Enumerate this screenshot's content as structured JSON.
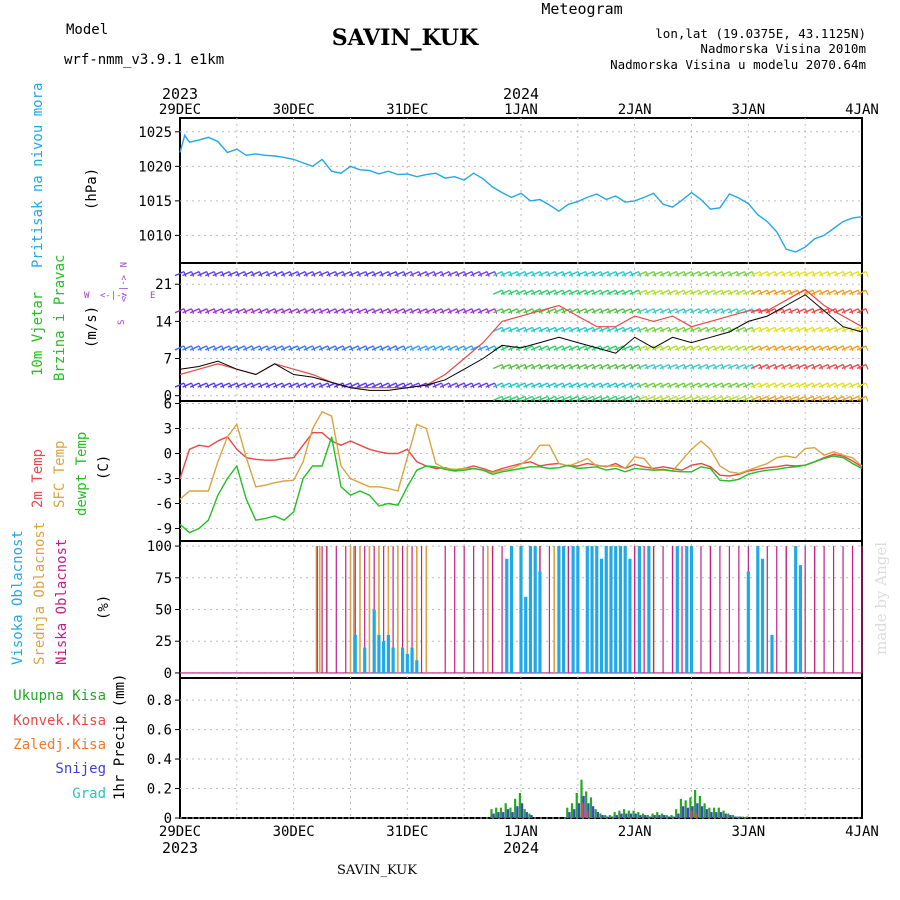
{
  "header": {
    "model_label": "Model",
    "model_value": "wrf-nmm_v3.9.1  e1km",
    "station_title": "SAVIN_KUK",
    "meteogram_label": "Meteogram",
    "lonlat": "lon,lat (19.0375E, 43.1125N)",
    "elevation": "Nadmorska Visina 2010m",
    "model_elevation": "Nadmorska Visina u modelu 2070.64m",
    "footer_station": "SAVIN_KUK",
    "watermark": "made by Angel"
  },
  "time_axis": {
    "top_years": [
      "2023",
      "2024"
    ],
    "bottom_years": [
      "2023",
      "2024"
    ],
    "dates": [
      "29DEC",
      "30DEC",
      "31DEC",
      "1JAN",
      "2JAN",
      "3JAN",
      "4JAN"
    ],
    "year_date_index": [
      0,
      3
    ],
    "hours_total": 144
  },
  "colors": {
    "pressure": "#22a8e6",
    "temp2m": "#e84848",
    "sfc": "#d9a441",
    "dewpt": "#22c022",
    "low_cloud": "#c0208a",
    "mid_cloud": "#d9a441",
    "high_cloud": "#22a8e6",
    "precip_total": "#22a822",
    "precip_conv": "#e84848",
    "precip_freez": "#f07a2a",
    "precip_snow": "#4040d8",
    "precip_grad": "#30c0c0"
  },
  "panels": {
    "pressure": {
      "labels": [
        "Pritisak na nivou mora",
        "(hPa)"
      ],
      "yticks": [
        "1025",
        "1020",
        "1015",
        "1010"
      ]
    },
    "wind": {
      "labels": [
        "10m Vjetar",
        "Brzina i Pravac",
        "(m/s)"
      ],
      "yticks": [
        "21",
        "14",
        "7",
        "0"
      ],
      "compass": {
        "n": "N",
        "s": "S",
        "e": "E",
        "w": "W",
        "arrow": "<-|->"
      }
    },
    "temperature": {
      "labels": [
        "2m Temp",
        "SFC Temp",
        "dewpt Temp",
        "(C)"
      ],
      "yticks": [
        "6",
        "3",
        "0",
        "-3",
        "-6",
        "-9"
      ]
    },
    "cloud": {
      "labels": [
        "Visoka Oblacnost",
        "Srednja Oblacnost",
        "Niska Oblacnost",
        "(%)"
      ],
      "yticks": [
        "100",
        "75",
        "50",
        "25",
        "0"
      ]
    },
    "precip": {
      "legend": [
        "Ukupna Kisa",
        "Konvek.Kisa",
        "Zaledj.Kisa",
        "Snijeg",
        "Grad"
      ],
      "ylabel": "1hr Precip (mm)",
      "yticks": [
        "0.8",
        "0.6",
        "0.4",
        "0.2",
        "0"
      ]
    }
  },
  "chart_data": {
    "type": "line",
    "x_unit": "hours from 29DEC 2023 00UTC",
    "pressure": {
      "name": "Pritisak na nivou mora",
      "ylim": [
        1006,
        1027
      ],
      "x": [
        0,
        1,
        2,
        4,
        6,
        8,
        10,
        12,
        14,
        16,
        18,
        20,
        22,
        24,
        26,
        28,
        30,
        32,
        34,
        36,
        38,
        40,
        42,
        44,
        46,
        48,
        50,
        52,
        54,
        56,
        58,
        60,
        62,
        64,
        66,
        68,
        70,
        72,
        74,
        76,
        78,
        80,
        82,
        84,
        86,
        88,
        90,
        92,
        94,
        96,
        98,
        100,
        102,
        104,
        106,
        108,
        110,
        112,
        114,
        116,
        118,
        120,
        122,
        124,
        126,
        128,
        130,
        132,
        134,
        136,
        138,
        140,
        142,
        144
      ],
      "values": [
        1022,
        1024.5,
        1023.5,
        1023.8,
        1024.2,
        1023.6,
        1022,
        1022.5,
        1021.6,
        1021.8,
        1021.6,
        1021.5,
        1021.3,
        1021,
        1020.5,
        1020,
        1021,
        1019.3,
        1019,
        1020,
        1019.5,
        1019.4,
        1018.9,
        1019.3,
        1018.8,
        1018.9,
        1018.5,
        1018.8,
        1019,
        1018.3,
        1018.5,
        1018,
        1019,
        1018.2,
        1017,
        1016.2,
        1015.5,
        1016.1,
        1015,
        1015.2,
        1014.4,
        1013.5,
        1014.5,
        1014.9,
        1015.5,
        1016,
        1015.2,
        1015.7,
        1014.8,
        1015,
        1015.5,
        1016.1,
        1014.5,
        1014.1,
        1015.1,
        1016.2,
        1015.2,
        1013.8,
        1014,
        1016,
        1015.4,
        1014.6,
        1013,
        1012,
        1010.5,
        1008,
        1007.6,
        1008.3,
        1009.5,
        1010,
        1011,
        1012,
        1012.5,
        1012.7
      ]
    },
    "wind": {
      "name": "10m Vjetar",
      "ylim": [
        -1,
        25
      ],
      "x": [
        0,
        4,
        8,
        12,
        16,
        20,
        24,
        28,
        32,
        36,
        40,
        44,
        48,
        52,
        56,
        60,
        64,
        68,
        72,
        76,
        80,
        84,
        88,
        92,
        96,
        100,
        104,
        108,
        112,
        116,
        120,
        124,
        128,
        132,
        136,
        140,
        144
      ],
      "speed_mean": [
        5,
        5.5,
        6.5,
        5,
        4,
        6,
        4,
        3.5,
        2.5,
        1.5,
        1,
        1,
        1.5,
        2,
        3,
        5,
        7,
        9.5,
        9,
        10,
        11,
        10,
        9,
        8,
        11,
        9,
        11,
        10,
        11,
        12,
        14,
        15,
        17,
        19,
        16,
        13,
        12
      ],
      "speed_gust": [
        4,
        5,
        6,
        5,
        4,
        6,
        5,
        4,
        2.5,
        1.5,
        1.5,
        1.5,
        1.5,
        2,
        4,
        7,
        10,
        14,
        15,
        16,
        17,
        15,
        13,
        13,
        15,
        14,
        15,
        13,
        14,
        15,
        16,
        16,
        18,
        20,
        17,
        15,
        13
      ]
    },
    "temperature": {
      "ylim": [
        -10.5,
        6.3
      ],
      "x": [
        0,
        2,
        4,
        6,
        8,
        10,
        12,
        14,
        16,
        18,
        20,
        22,
        24,
        26,
        28,
        30,
        32,
        34,
        36,
        38,
        40,
        42,
        44,
        46,
        48,
        50,
        52,
        54,
        56,
        58,
        60,
        62,
        64,
        66,
        68,
        70,
        72,
        74,
        76,
        78,
        80,
        82,
        84,
        86,
        88,
        90,
        92,
        94,
        96,
        98,
        100,
        102,
        104,
        106,
        108,
        110,
        112,
        114,
        116,
        118,
        120,
        122,
        124,
        126,
        128,
        130,
        132,
        134,
        136,
        138,
        140,
        142,
        144
      ],
      "series": [
        {
          "name": "2m Temp",
          "values": [
            -3,
            0.5,
            1,
            0.8,
            1.5,
            2,
            0.5,
            -0.5,
            -0.7,
            -0.8,
            -0.8,
            -0.6,
            -0.5,
            1,
            2.5,
            2.5,
            1.5,
            1,
            1.5,
            1,
            0.5,
            0.2,
            0,
            0,
            0.5,
            -1,
            -1.5,
            -1.8,
            -1.7,
            -2,
            -1.8,
            -1.5,
            -1.8,
            -2.2,
            -1.8,
            -1.5,
            -1.2,
            -1,
            -1.5,
            -1.3,
            -1.2,
            -1.5,
            -1.5,
            -1.2,
            -1.4,
            -1.6,
            -1.2,
            -1.8,
            -1.3,
            -1.6,
            -1.8,
            -1.6,
            -1.8,
            -2,
            -1.4,
            -1.2,
            -1.6,
            -2.6,
            -2.7,
            -2.5,
            -2.1,
            -1.9,
            -1.7,
            -1.6,
            -1.4,
            -1.5,
            -1.4,
            -1,
            -0.5,
            -0.1,
            -0.3,
            -0.9,
            -1.6
          ]
        },
        {
          "name": "SFC Temp",
          "values": [
            -5.5,
            -4.5,
            -4.5,
            -4.5,
            -1,
            2,
            3.5,
            -0.5,
            -4,
            -3.8,
            -3.5,
            -3.3,
            -3.2,
            -1,
            3,
            5,
            4.5,
            -1.5,
            -3,
            -3.5,
            -4,
            -4,
            -4.2,
            -4.5,
            -0.5,
            3.5,
            3,
            -1.2,
            -1.8,
            -1.9,
            -1.8,
            -1.8,
            -2,
            -2.3,
            -2,
            -1.8,
            -1.3,
            -0.5,
            1,
            1,
            -1.2,
            -1.5,
            -1.1,
            -0.6,
            -1.5,
            -1.5,
            -1.5,
            -1.8,
            -0.4,
            -0.6,
            -2,
            -2,
            -2.1,
            -0.8,
            0.5,
            1.5,
            0.5,
            -1.5,
            -2.2,
            -2.4,
            -2,
            -1.6,
            -1.2,
            -0.5,
            -0.3,
            -0.5,
            0.6,
            0.7,
            -0.2,
            0.2,
            -0.2,
            -0.5,
            -1.5
          ]
        },
        {
          "name": "dewpt Temp",
          "values": [
            -8.5,
            -9.5,
            -9,
            -8,
            -5,
            -3,
            -1.5,
            -5.5,
            -8,
            -7.8,
            -7.5,
            -8,
            -7,
            -3,
            -1.5,
            -1.5,
            2,
            -4,
            -5,
            -4.5,
            -5,
            -6.3,
            -6,
            -6.2,
            -4,
            -2,
            -1.5,
            -1.6,
            -1.9,
            -2.1,
            -2,
            -1.8,
            -2,
            -2.5,
            -2.2,
            -2,
            -1.8,
            -1.6,
            -1.6,
            -1.8,
            -1.7,
            -1.4,
            -1.8,
            -1.7,
            -1.6,
            -2,
            -1.8,
            -2.2,
            -1.8,
            -1.9,
            -2,
            -1.9,
            -2.1,
            -2.2,
            -2.2,
            -1.6,
            -1.8,
            -3.2,
            -3.3,
            -3.1,
            -2.5,
            -2.2,
            -2,
            -1.9,
            -1.7,
            -1.6,
            -1.4,
            -1,
            -0.6,
            -0.3,
            -0.5,
            -1.2,
            -1.8
          ]
        }
      ]
    },
    "cloud": {
      "ylim": [
        0,
        100
      ],
      "low_hours": [
        29,
        30,
        31,
        33,
        35,
        37,
        39,
        41,
        43,
        45,
        47,
        49,
        51,
        56,
        58,
        60,
        62,
        64,
        66,
        68,
        70,
        72,
        74,
        76,
        78,
        80,
        82,
        84,
        86,
        88,
        90,
        92,
        94,
        96,
        98,
        100,
        102,
        104,
        106,
        108,
        110,
        112,
        114,
        116,
        118,
        120,
        122,
        124,
        126,
        128,
        130,
        132,
        134,
        136,
        138,
        140,
        142,
        144
      ],
      "mid_hours": [
        28.8,
        29.5,
        31,
        36,
        36.7,
        38,
        40,
        42,
        44,
        46,
        48,
        50,
        52,
        65,
        66,
        70,
        72,
        75,
        76,
        79,
        80,
        81,
        82,
        84,
        96,
        100,
        104,
        112,
        128,
        134
      ],
      "high_hours": [
        37,
        39,
        41,
        42,
        43,
        44,
        45,
        47,
        48,
        49,
        50,
        69,
        70,
        72,
        73,
        74,
        75,
        76,
        80,
        81,
        83,
        84,
        86,
        87,
        88,
        89,
        90,
        91,
        92,
        93,
        94,
        95,
        97,
        99,
        105,
        107,
        108,
        120,
        122,
        123,
        125,
        130,
        131
      ],
      "high_levels": [
        30,
        20,
        50,
        30,
        25,
        30,
        20,
        20,
        15,
        20,
        10,
        90,
        100,
        100,
        60,
        100,
        100,
        80,
        100,
        100,
        100,
        100,
        100,
        100,
        100,
        90,
        100,
        100,
        100,
        100,
        100,
        90,
        100,
        100,
        100,
        100,
        100,
        80,
        100,
        90,
        30,
        100,
        85
      ]
    },
    "precip": {
      "ylim": [
        0,
        0.95
      ],
      "x": [
        66,
        67,
        68,
        69,
        70,
        71,
        72,
        73,
        74,
        82,
        83,
        84,
        85,
        86,
        87,
        88,
        89,
        90,
        91,
        92,
        93,
        94,
        95,
        96,
        97,
        98,
        99,
        100,
        101,
        102,
        103,
        104,
        105,
        106,
        107,
        108,
        109,
        110,
        111,
        112,
        113,
        114,
        115,
        116,
        117,
        118,
        119,
        120
      ],
      "total": [
        0.06,
        0.07,
        0.07,
        0.1,
        0.07,
        0.13,
        0.17,
        0.06,
        0.03,
        0.07,
        0.1,
        0.17,
        0.26,
        0.18,
        0.14,
        0.06,
        0.03,
        0.02,
        0.02,
        0.04,
        0.05,
        0.06,
        0.05,
        0.05,
        0.04,
        0.03,
        0.02,
        0.03,
        0.04,
        0.03,
        0.02,
        0.02,
        0.06,
        0.13,
        0.12,
        0.14,
        0.19,
        0.15,
        0.1,
        0.07,
        0.07,
        0.07,
        0.05,
        0.03,
        0.02,
        0.01,
        0.01,
        0.01
      ],
      "convective": [
        0,
        0,
        0,
        0,
        0,
        0,
        0,
        0,
        0,
        0,
        0,
        0,
        0.1,
        0.05,
        0,
        0,
        0,
        0,
        0,
        0,
        0,
        0,
        0,
        0,
        0,
        0,
        0,
        0,
        0,
        0,
        0,
        0,
        0,
        0,
        0,
        0.05,
        0.03,
        0,
        0,
        0,
        0,
        0,
        0,
        0,
        0,
        0,
        0,
        0
      ],
      "snow": [
        0.03,
        0.04,
        0.04,
        0.06,
        0.04,
        0.08,
        0.1,
        0.04,
        0.02,
        0.04,
        0.06,
        0.1,
        0.15,
        0.1,
        0.08,
        0.04,
        0.02,
        0.01,
        0.01,
        0.02,
        0.03,
        0.03,
        0.03,
        0.03,
        0.02,
        0.02,
        0.01,
        0.02,
        0.02,
        0.02,
        0.01,
        0.01,
        0.03,
        0.08,
        0.07,
        0.08,
        0.1,
        0.08,
        0.06,
        0.04,
        0.04,
        0.04,
        0.03,
        0.02,
        0.01,
        0.01,
        0,
        0
      ]
    }
  }
}
